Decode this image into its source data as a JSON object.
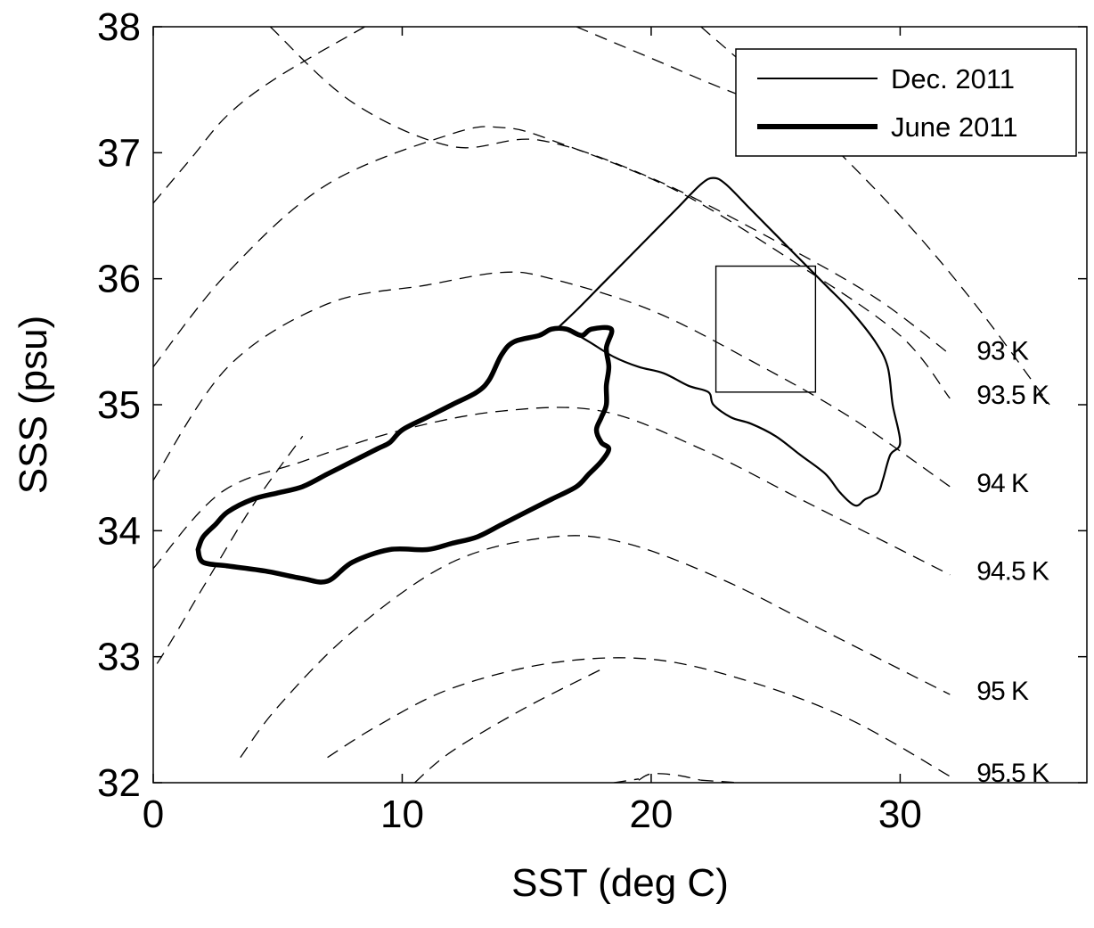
{
  "chart_data": {
    "type": "line",
    "xlabel": "SST (deg C)",
    "ylabel": "SSS (psu)",
    "xlim": [
      0,
      37.5
    ],
    "ylim": [
      32,
      38
    ],
    "x_ticks": [
      0,
      10,
      20,
      30
    ],
    "y_ticks": [
      32,
      33,
      34,
      35,
      36,
      37,
      38
    ],
    "grid": false,
    "legend": {
      "position": "top-right",
      "entries": [
        {
          "name": "Dec. 2011",
          "line": "thin"
        },
        {
          "name": "June 2011",
          "line": "thick"
        }
      ]
    },
    "contours": [
      {
        "label": "93 K",
        "points": [
          [
            4.7,
            38
          ],
          [
            8,
            37.4
          ],
          [
            12,
            37.05
          ],
          [
            15.5,
            37.1
          ],
          [
            20,
            36.8
          ],
          [
            25,
            36.3
          ],
          [
            29,
            35.85
          ],
          [
            32,
            35.4
          ]
        ]
      },
      {
        "label": "93.5 K",
        "points": [
          [
            0,
            35.3
          ],
          [
            3,
            36.05
          ],
          [
            7,
            36.75
          ],
          [
            12,
            37.15
          ],
          [
            14,
            37.2
          ],
          [
            16,
            37.1
          ],
          [
            21,
            36.7
          ],
          [
            26,
            36.1
          ],
          [
            30,
            35.55
          ],
          [
            32,
            35.05
          ]
        ]
      },
      {
        "label": "94 K",
        "points": [
          [
            0,
            34.4
          ],
          [
            3,
            35.3
          ],
          [
            7,
            35.8
          ],
          [
            11,
            35.95
          ],
          [
            14,
            36.05
          ],
          [
            16,
            36.0
          ],
          [
            20,
            35.75
          ],
          [
            24,
            35.35
          ],
          [
            28,
            34.9
          ],
          [
            32,
            34.35
          ]
        ]
      },
      {
        "label": "94.5 K",
        "points": [
          [
            0,
            33.7
          ],
          [
            2.7,
            34.3
          ],
          [
            6,
            34.55
          ],
          [
            10,
            34.8
          ],
          [
            14,
            34.95
          ],
          [
            18,
            34.95
          ],
          [
            22,
            34.65
          ],
          [
            26,
            34.25
          ],
          [
            29,
            33.95
          ],
          [
            32,
            33.65
          ]
        ]
      },
      {
        "label": "95 K",
        "points": [
          [
            3.5,
            32.2
          ],
          [
            5,
            32.6
          ],
          [
            8,
            33.2
          ],
          [
            12,
            33.75
          ],
          [
            16,
            33.95
          ],
          [
            19,
            33.9
          ],
          [
            23,
            33.6
          ],
          [
            27,
            33.2
          ],
          [
            32,
            32.7
          ]
        ]
      },
      {
        "label": "95.5 K",
        "points": [
          [
            7,
            32.2
          ],
          [
            9,
            32.45
          ],
          [
            12,
            32.75
          ],
          [
            16,
            32.95
          ],
          [
            20,
            32.98
          ],
          [
            24,
            32.8
          ],
          [
            28,
            32.5
          ],
          [
            32,
            32.05
          ]
        ]
      },
      {
        "label": "",
        "points": [
          [
            -3,
            32.0
          ],
          [
            -2,
            32.4
          ],
          [
            0,
            32.9
          ],
          [
            2,
            33.55
          ],
          [
            4,
            34.2
          ],
          [
            6,
            34.75
          ]
        ]
      },
      {
        "label": "",
        "points": [
          [
            0,
            36.6
          ],
          [
            1.5,
            36.95
          ],
          [
            3,
            37.3
          ],
          [
            5,
            37.6
          ],
          [
            8.5,
            38
          ]
        ]
      },
      {
        "label": "",
        "points": [
          [
            17,
            38
          ],
          [
            20,
            37.75
          ],
          [
            23,
            37.5
          ],
          [
            27,
            37.2
          ]
        ]
      },
      {
        "label": "",
        "points": [
          [
            10.5,
            32
          ],
          [
            12,
            32.25
          ],
          [
            15,
            32.6
          ],
          [
            18,
            32.9
          ]
        ]
      },
      {
        "label": "",
        "points": [
          [
            22,
            38
          ],
          [
            26,
            37.3
          ],
          [
            30,
            36.5
          ],
          [
            33,
            35.8
          ],
          [
            36,
            35.0
          ]
        ]
      },
      {
        "label": "",
        "points": [
          [
            19.5,
            32.02
          ],
          [
            20,
            32.07
          ],
          [
            21,
            32.06
          ],
          [
            22,
            32.02
          ]
        ]
      },
      {
        "label": "",
        "points": [
          [
            18.5,
            32.0
          ],
          [
            19.5,
            32.03
          ]
        ]
      },
      {
        "label": "",
        "points": [
          [
            22,
            32.02
          ],
          [
            23.5,
            32.0
          ]
        ]
      }
    ],
    "series": [
      {
        "name": "Dec. 2011",
        "points": [
          [
            16.2,
            35.6
          ],
          [
            17,
            35.75
          ],
          [
            18,
            35.95
          ],
          [
            19,
            36.15
          ],
          [
            20,
            36.35
          ],
          [
            21,
            36.55
          ],
          [
            22,
            36.75
          ],
          [
            22.5,
            36.8
          ],
          [
            23,
            36.75
          ],
          [
            24,
            36.55
          ],
          [
            25,
            36.35
          ],
          [
            26,
            36.15
          ],
          [
            27,
            35.95
          ],
          [
            28,
            35.75
          ],
          [
            29,
            35.5
          ],
          [
            29.5,
            35.3
          ],
          [
            29.7,
            35.0
          ],
          [
            30.0,
            34.7
          ],
          [
            29.6,
            34.6
          ],
          [
            29.3,
            34.4
          ],
          [
            29.1,
            34.3
          ],
          [
            28.6,
            34.25
          ],
          [
            28.2,
            34.2
          ],
          [
            27.6,
            34.3
          ],
          [
            27,
            34.45
          ],
          [
            26,
            34.6
          ],
          [
            25,
            34.75
          ],
          [
            24,
            34.85
          ],
          [
            23.2,
            34.9
          ],
          [
            22.5,
            35.0
          ],
          [
            22.3,
            35.1
          ],
          [
            21.5,
            35.15
          ],
          [
            20.5,
            35.25
          ],
          [
            19.5,
            35.3
          ],
          [
            18.5,
            35.38
          ],
          [
            17.5,
            35.5
          ],
          [
            16.6,
            35.6
          ],
          [
            16.2,
            35.6
          ]
        ]
      },
      {
        "name": "June 2011",
        "points": [
          [
            1.8,
            33.85
          ],
          [
            2,
            33.75
          ],
          [
            3,
            33.72
          ],
          [
            4.5,
            33.68
          ],
          [
            6,
            33.62
          ],
          [
            7,
            33.6
          ],
          [
            8,
            33.75
          ],
          [
            9.5,
            33.85
          ],
          [
            11,
            33.85
          ],
          [
            12,
            33.9
          ],
          [
            13,
            33.95
          ],
          [
            14,
            34.05
          ],
          [
            15,
            34.15
          ],
          [
            16,
            34.25
          ],
          [
            17,
            34.35
          ],
          [
            17.5,
            34.45
          ],
          [
            18,
            34.55
          ],
          [
            18.3,
            34.65
          ],
          [
            18.0,
            34.7
          ],
          [
            17.8,
            34.8
          ],
          [
            18,
            34.9
          ],
          [
            18.2,
            35.0
          ],
          [
            18.2,
            35.15
          ],
          [
            18.3,
            35.3
          ],
          [
            18.2,
            35.45
          ],
          [
            18.4,
            35.6
          ],
          [
            17.6,
            35.6
          ],
          [
            17.2,
            35.55
          ],
          [
            16.6,
            35.6
          ],
          [
            16,
            35.6
          ],
          [
            15.5,
            35.55
          ],
          [
            14.5,
            35.5
          ],
          [
            14,
            35.4
          ],
          [
            13.5,
            35.2
          ],
          [
            13,
            35.1
          ],
          [
            12,
            35.0
          ],
          [
            11,
            34.9
          ],
          [
            10,
            34.8
          ],
          [
            9.5,
            34.7
          ],
          [
            9,
            34.65
          ],
          [
            8,
            34.55
          ],
          [
            7,
            34.45
          ],
          [
            6,
            34.35
          ],
          [
            5,
            34.3
          ],
          [
            4,
            34.25
          ],
          [
            3,
            34.15
          ],
          [
            2.5,
            34.05
          ],
          [
            2,
            33.95
          ],
          [
            1.8,
            33.85
          ]
        ]
      }
    ],
    "rectangle": {
      "x": [
        22.6,
        26.6
      ],
      "y": [
        35.1,
        36.1
      ]
    }
  }
}
